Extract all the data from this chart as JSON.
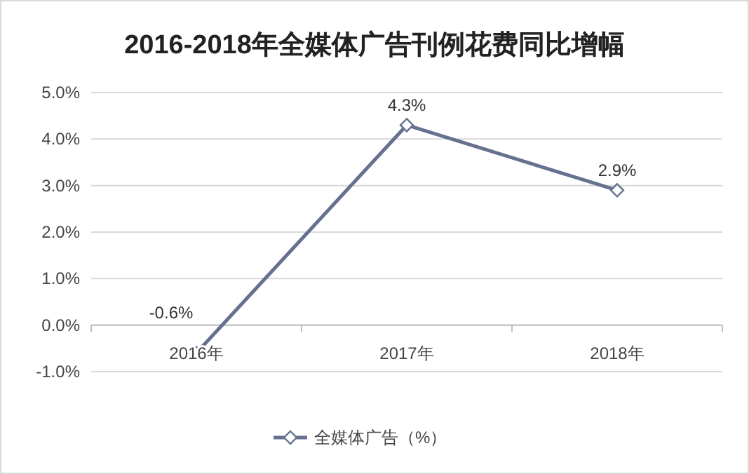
{
  "chart_data": {
    "type": "line",
    "title": "2016-2018年全媒体广告刊例花费同比增幅",
    "categories": [
      "2016年",
      "2017年",
      "2018年"
    ],
    "series": [
      {
        "name": "全媒体广告（%）",
        "color": "#66718f",
        "values": [
          -0.6,
          4.3,
          2.9
        ],
        "value_labels": [
          "-0.6%",
          "4.3%",
          "2.9%"
        ]
      }
    ],
    "ylim": [
      -1,
      5
    ],
    "yticks": [
      {
        "value": -1,
        "label": "-1.0%"
      },
      {
        "value": 0,
        "label": "0.0%"
      },
      {
        "value": 1,
        "label": "1.0%"
      },
      {
        "value": 2,
        "label": "2.0%"
      },
      {
        "value": 3,
        "label": "3.0%"
      },
      {
        "value": 4,
        "label": "4.0%"
      },
      {
        "value": 5,
        "label": "5.0%"
      }
    ],
    "grid": "y",
    "legend": "bottom",
    "marker": "diamond",
    "line_style": "solid"
  }
}
